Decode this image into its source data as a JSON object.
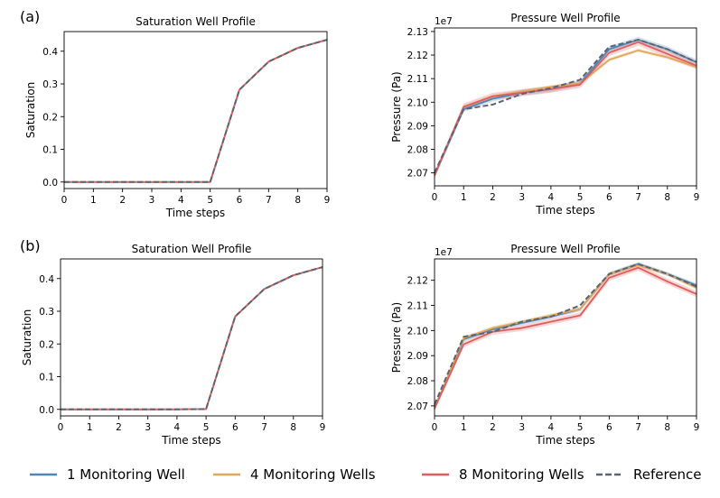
{
  "labels": {
    "panel_a": "(a)",
    "panel_b": "(b)",
    "sat_title": "Saturation Well Profile",
    "pres_title": "Pressure Well Profile",
    "xlabel": "Time steps",
    "sat_ylabel": "Saturation",
    "pres_ylabel": "Pressure (Pa)",
    "pres_scale": "1e7"
  },
  "legend": [
    {
      "name": "1 Monitoring Well",
      "color": "#4f86b8",
      "dash": false
    },
    {
      "name": "4 Monitoring Wells",
      "color": "#e0a65c",
      "dash": false
    },
    {
      "name": "8 Monitoring Wells",
      "color": "#e05d5d",
      "dash": false
    },
    {
      "name": "Reference",
      "color": "#5b6470",
      "dash": true
    }
  ],
  "chart_data": [
    {
      "id": "a_sat",
      "type": "line",
      "title": "Saturation Well Profile",
      "xlabel": "Time steps",
      "ylabel": "Saturation",
      "x": [
        0,
        1,
        2,
        3,
        4,
        5,
        6,
        7,
        8,
        9
      ],
      "xlim": [
        0,
        9
      ],
      "ylim": [
        -0.02,
        0.46
      ],
      "yticks": [
        0.0,
        0.1,
        0.2,
        0.3,
        0.4
      ],
      "ytick_labels": [
        "0.0",
        "0.1",
        "0.2",
        "0.3",
        "0.4"
      ],
      "xtick_labels": [
        "0",
        "1",
        "2",
        "3",
        "4",
        "5",
        "6",
        "7",
        "8",
        "9"
      ],
      "series": [
        {
          "name": "1 Monitoring Well",
          "values": [
            0,
            0,
            0,
            0,
            0,
            0,
            0.282,
            0.368,
            0.41,
            0.435
          ]
        },
        {
          "name": "4 Monitoring Wells",
          "values": [
            0,
            0,
            0,
            0,
            0,
            0,
            0.282,
            0.368,
            0.41,
            0.435
          ]
        },
        {
          "name": "8 Monitoring Wells",
          "values": [
            0,
            0,
            0,
            0,
            0,
            0,
            0.282,
            0.368,
            0.41,
            0.435
          ]
        },
        {
          "name": "Reference",
          "values": [
            0,
            0,
            0,
            0,
            0,
            0,
            0.282,
            0.368,
            0.41,
            0.435
          ]
        }
      ]
    },
    {
      "id": "a_pres",
      "type": "line",
      "title": "Pressure Well Profile",
      "xlabel": "Time steps",
      "ylabel": "Pressure (Pa)",
      "scale_label": "1e7",
      "x": [
        0,
        1,
        2,
        3,
        4,
        5,
        6,
        7,
        8,
        9
      ],
      "xlim": [
        0,
        9
      ],
      "ylim": [
        2.0645,
        2.1315
      ],
      "yticks": [
        2.07,
        2.08,
        2.09,
        2.1,
        2.11,
        2.12,
        2.13
      ],
      "ytick_labels": [
        "2.07",
        "2.08",
        "2.09",
        "2.10",
        "2.11",
        "2.12",
        "2.13"
      ],
      "xtick_labels": [
        "0",
        "1",
        "2",
        "3",
        "4",
        "5",
        "6",
        "7",
        "8",
        "9"
      ],
      "series": [
        {
          "name": "1 Monitoring Well",
          "values": [
            2.069,
            2.097,
            2.1015,
            2.104,
            2.1055,
            2.108,
            2.1225,
            2.1265,
            2.1225,
            2.117
          ],
          "band": 0.0012
        },
        {
          "name": "4 Monitoring Wells",
          "values": [
            2.069,
            2.098,
            2.1025,
            2.1045,
            2.1065,
            2.108,
            2.118,
            2.122,
            2.119,
            2.115
          ],
          "band": 0.0008
        },
        {
          "name": "8 Monitoring Wells",
          "values": [
            2.069,
            2.098,
            2.1025,
            2.104,
            2.1055,
            2.1075,
            2.121,
            2.1255,
            2.1205,
            2.1155
          ],
          "band": 0.0015
        },
        {
          "name": "Reference",
          "values": [
            2.07,
            2.097,
            2.099,
            2.1035,
            2.106,
            2.1095,
            2.1235,
            2.1265,
            2.1225,
            2.117
          ]
        }
      ]
    },
    {
      "id": "b_sat",
      "type": "line",
      "title": "Saturation Well Profile",
      "xlabel": "Time steps",
      "ylabel": "Saturation",
      "x": [
        0,
        1,
        2,
        3,
        4,
        5,
        6,
        7,
        8,
        9
      ],
      "xlim": [
        0,
        9
      ],
      "ylim": [
        -0.02,
        0.46
      ],
      "yticks": [
        0.0,
        0.1,
        0.2,
        0.3,
        0.4
      ],
      "ytick_labels": [
        "0.0",
        "0.1",
        "0.2",
        "0.3",
        "0.4"
      ],
      "xtick_labels": [
        "0",
        "1",
        "2",
        "3",
        "4",
        "5",
        "6",
        "7",
        "8",
        "9"
      ],
      "series": [
        {
          "name": "1 Monitoring Well",
          "values": [
            0,
            0,
            0,
            0,
            0,
            0.001,
            0.284,
            0.368,
            0.41,
            0.435
          ]
        },
        {
          "name": "4 Monitoring Wells",
          "values": [
            0,
            0,
            0,
            0,
            0,
            0.001,
            0.284,
            0.368,
            0.41,
            0.435
          ]
        },
        {
          "name": "8 Monitoring Wells",
          "values": [
            0,
            0,
            0,
            0,
            0,
            0.001,
            0.284,
            0.368,
            0.41,
            0.435
          ]
        },
        {
          "name": "Reference",
          "values": [
            0,
            0,
            0,
            0,
            0,
            0.001,
            0.284,
            0.368,
            0.41,
            0.435
          ]
        }
      ]
    },
    {
      "id": "b_pres",
      "type": "line",
      "title": "Pressure Well Profile",
      "xlabel": "Time steps",
      "ylabel": "Pressure (Pa)",
      "scale_label": "1e7",
      "x": [
        0,
        1,
        2,
        3,
        4,
        5,
        6,
        7,
        8,
        9
      ],
      "xlim": [
        0,
        9
      ],
      "ylim": [
        2.066,
        2.1285
      ],
      "yticks": [
        2.07,
        2.08,
        2.09,
        2.1,
        2.11,
        2.12
      ],
      "ytick_labels": [
        "2.07",
        "2.08",
        "2.09",
        "2.10",
        "2.11",
        "2.12"
      ],
      "xtick_labels": [
        "0",
        "1",
        "2",
        "3",
        "4",
        "5",
        "6",
        "7",
        "8",
        "9"
      ],
      "series": [
        {
          "name": "1 Monitoring Well",
          "values": [
            2.069,
            2.0965,
            2.1005,
            2.103,
            2.1055,
            2.1085,
            2.1225,
            2.1265,
            2.1225,
            2.118
          ],
          "band": 0.0008
        },
        {
          "name": "4 Monitoring Wells",
          "values": [
            2.069,
            2.097,
            2.101,
            2.1035,
            2.106,
            2.1085,
            2.1225,
            2.126,
            2.1225,
            2.117
          ],
          "band": 0.0008
        },
        {
          "name": "8 Monitoring Wells",
          "values": [
            2.069,
            2.0945,
            2.0995,
            2.101,
            2.1035,
            2.106,
            2.121,
            2.125,
            2.1195,
            2.1145
          ],
          "band": 0.0012
        },
        {
          "name": "Reference",
          "values": [
            2.0705,
            2.0975,
            2.0995,
            2.1035,
            2.1055,
            2.11,
            2.1225,
            2.1265,
            2.1225,
            2.1175
          ]
        }
      ]
    }
  ]
}
